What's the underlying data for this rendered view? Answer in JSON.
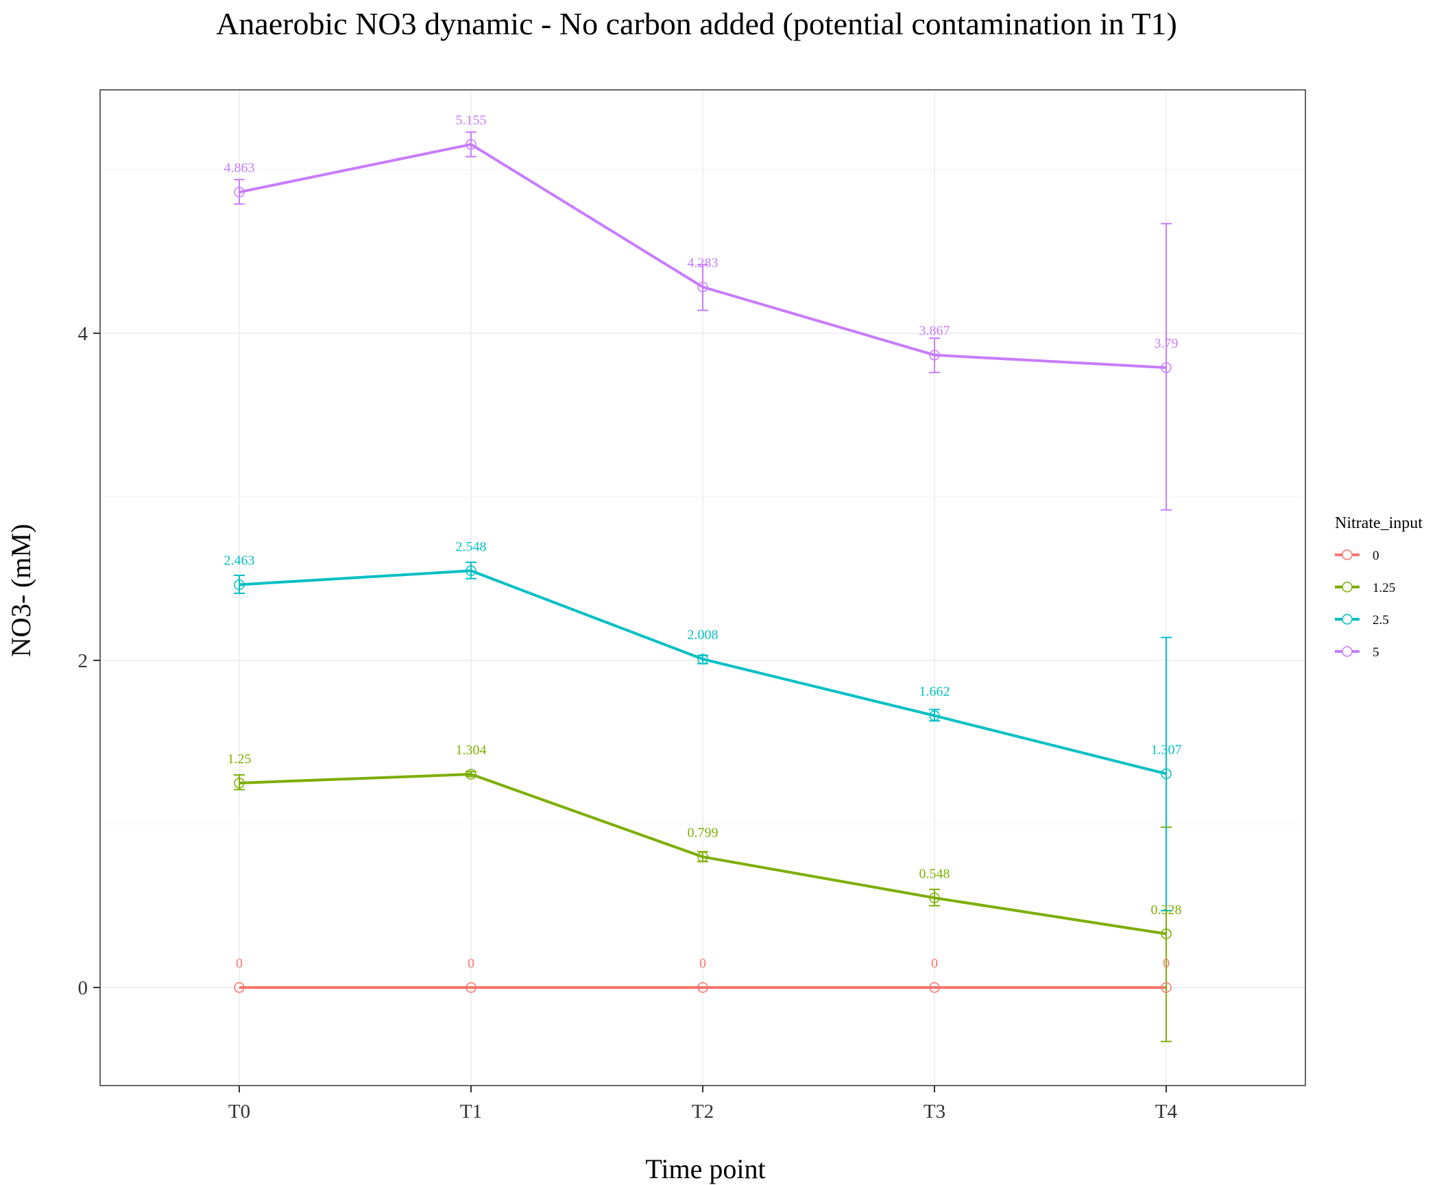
{
  "chart_data": {
    "type": "line",
    "title": "Anaerobic NO3 dynamic - No carbon added (potential contamination in T1)",
    "xlabel": "Time point",
    "ylabel": "NO3- (mM)",
    "categories": [
      "T0",
      "T1",
      "T2",
      "T3",
      "T4"
    ],
    "ylim": [
      -0.6,
      5.5
    ],
    "yticks": [
      0,
      2,
      4
    ],
    "grid": true,
    "legend": {
      "title": "Nitrate_input",
      "position": "right"
    },
    "series": [
      {
        "name": "0",
        "color": "#F8766D",
        "values": [
          0,
          0,
          0,
          0,
          0
        ],
        "labels": [
          "0",
          "0",
          "0",
          "0",
          "0"
        ],
        "error_low": [
          0,
          0,
          0,
          0,
          0
        ],
        "error_high": [
          0,
          0,
          0,
          0,
          0
        ]
      },
      {
        "name": "1.25",
        "color": "#7CAE00",
        "values": [
          1.25,
          1.304,
          0.799,
          0.548,
          0.328
        ],
        "labels": [
          "1.25",
          "1.304",
          "0.799",
          "0.548",
          "0.328"
        ],
        "error_low": [
          1.21,
          1.29,
          0.77,
          0.5,
          -0.33
        ],
        "error_high": [
          1.3,
          1.32,
          0.83,
          0.6,
          0.98
        ]
      },
      {
        "name": "2.5",
        "color": "#00BFC4",
        "values": [
          2.463,
          2.548,
          2.008,
          1.662,
          1.307
        ],
        "labels": [
          "2.463",
          "2.548",
          "2.008",
          "1.662",
          "1.307"
        ],
        "error_low": [
          2.41,
          2.5,
          1.98,
          1.63,
          0.47
        ],
        "error_high": [
          2.52,
          2.6,
          2.03,
          1.7,
          2.14
        ]
      },
      {
        "name": "5",
        "color": "#C77CFF",
        "values": [
          4.863,
          5.155,
          4.283,
          3.867,
          3.79
        ],
        "labels": [
          "4.863",
          "5.155",
          "4.283",
          "3.867",
          "3.79"
        ],
        "error_low": [
          4.79,
          5.08,
          4.14,
          3.76,
          2.92
        ],
        "error_high": [
          4.94,
          5.23,
          4.42,
          3.97,
          4.67
        ]
      }
    ]
  }
}
